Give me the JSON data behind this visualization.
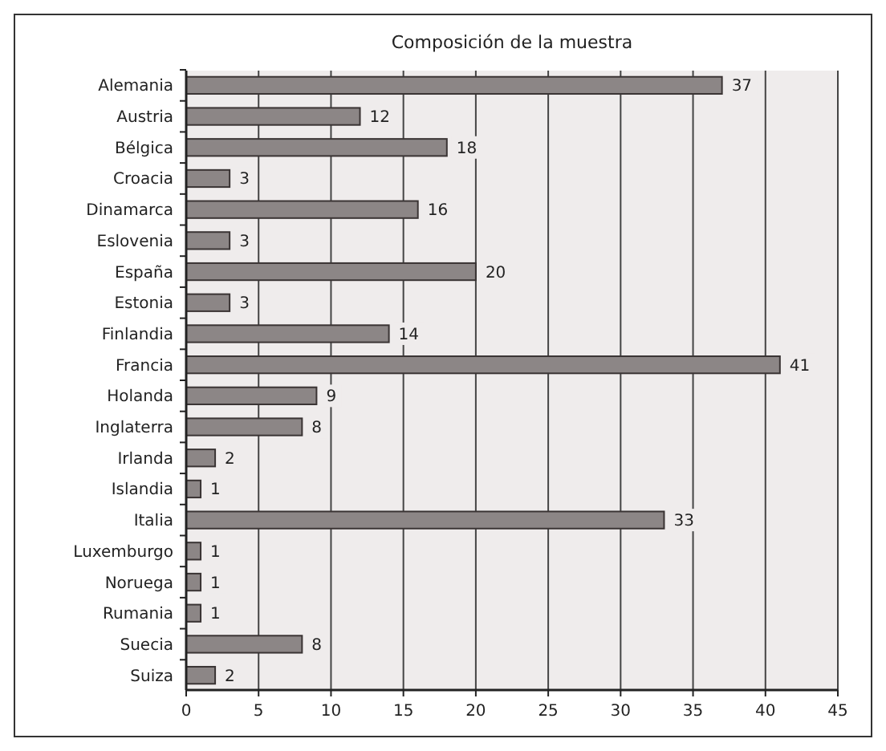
{
  "chart_data": {
    "type": "bar",
    "orientation": "horizontal",
    "title": "Composición de la muestra",
    "categories": [
      "Alemania",
      "Austria",
      "Bélgica",
      "Croacia",
      "Dinamarca",
      "Eslovenia",
      "España",
      "Estonia",
      "Finlandia",
      "Francia",
      "Holanda",
      "Inglaterra",
      "Irlanda",
      "Islandia",
      "Italia",
      "Luxemburgo",
      "Noruega",
      "Rumania",
      "Suecia",
      "Suiza"
    ],
    "values": [
      37,
      12,
      18,
      3,
      16,
      3,
      20,
      3,
      14,
      41,
      9,
      8,
      2,
      1,
      33,
      1,
      1,
      1,
      8,
      2
    ],
    "color": "#8c8686",
    "data_labels": true,
    "xlim": [
      0,
      45
    ],
    "xticks": [
      0,
      5,
      10,
      15,
      20,
      25,
      30,
      35,
      40,
      45
    ],
    "grid": "x"
  }
}
